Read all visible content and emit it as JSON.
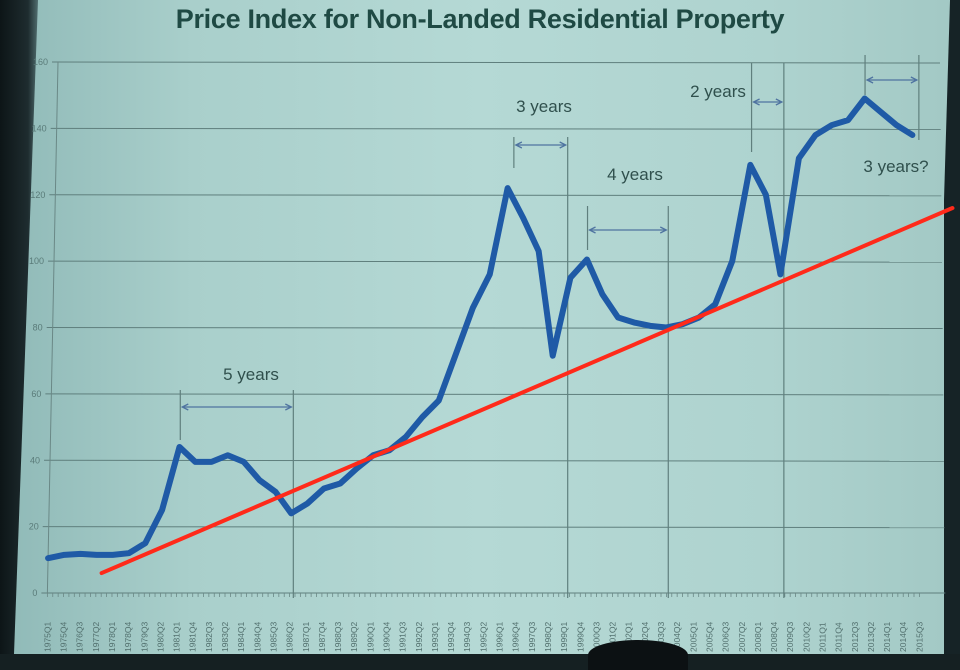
{
  "chart_data": {
    "type": "line",
    "title": "Price Index for Non-Landed Residential Property",
    "xlabel": "",
    "ylabel": "",
    "ylim": [
      0,
      160
    ],
    "yticks": [
      0,
      20,
      40,
      60,
      80,
      100,
      120,
      140,
      160
    ],
    "grid": true,
    "legend": null,
    "xtick_labels": [
      "1975Q1",
      "1975Q4",
      "1976Q3",
      "1977Q2",
      "1978Q1",
      "1978Q4",
      "1979Q3",
      "1980Q2",
      "1981Q1",
      "1981Q4",
      "1982Q3",
      "1983Q2",
      "1984Q1",
      "1984Q4",
      "1985Q3",
      "1986Q2",
      "1987Q1",
      "1987Q4",
      "1988Q3",
      "1989Q2",
      "1990Q1",
      "1990Q4",
      "1991Q3",
      "1992Q2",
      "1993Q1",
      "1993Q4",
      "1994Q3",
      "1995Q2",
      "1996Q1",
      "1996Q4",
      "1997Q3",
      "1998Q2",
      "1999Q1",
      "1999Q4",
      "2000Q3",
      "2001Q2",
      "2002Q1",
      "2002Q4",
      "2003Q3",
      "2004Q2",
      "2005Q1",
      "2005Q4",
      "2006Q3",
      "2007Q2",
      "2008Q1",
      "2008Q4",
      "2009Q3",
      "2010Q2",
      "2011Q1",
      "2011Q4",
      "2012Q3",
      "2013Q2",
      "2014Q1",
      "2014Q4",
      "2015Q3"
    ],
    "series": [
      {
        "name": "Price Index",
        "color": "#1f5aa6",
        "x": [
          "1975Q1",
          "1975Q4",
          "1976Q3",
          "1977Q2",
          "1978Q1",
          "1978Q4",
          "1979Q3",
          "1980Q2",
          "1981Q1",
          "1981Q4",
          "1982Q3",
          "1983Q2",
          "1984Q1",
          "1984Q4",
          "1985Q3",
          "1986Q2",
          "1987Q1",
          "1987Q4",
          "1988Q3",
          "1989Q2",
          "1990Q1",
          "1990Q4",
          "1991Q3",
          "1992Q2",
          "1993Q1",
          "1993Q4",
          "1994Q3",
          "1995Q2",
          "1996Q1",
          "1996Q4",
          "1997Q3",
          "1998Q2",
          "1999Q1",
          "1999Q4",
          "2000Q3",
          "2001Q2",
          "2002Q1",
          "2002Q4",
          "2003Q3",
          "2004Q2",
          "2005Q1",
          "2005Q4",
          "2006Q3",
          "2007Q2",
          "2008Q1",
          "2008Q4",
          "2009Q3",
          "2010Q2",
          "2011Q1",
          "2011Q4",
          "2012Q3",
          "2013Q2",
          "2014Q1",
          "2014Q4"
        ],
        "values": [
          10.5,
          11.5,
          11.8,
          11.5,
          11.5,
          12.0,
          15.0,
          25.0,
          44.0,
          39.5,
          39.5,
          41.5,
          39.5,
          34.0,
          30.5,
          24.0,
          27.0,
          31.5,
          33.0,
          37.5,
          41.5,
          43.0,
          47.0,
          53.0,
          58.0,
          72.0,
          86.0,
          96.0,
          122.0,
          113.0,
          103.0,
          71.5,
          95.0,
          100.5,
          90.0,
          83.0,
          81.5,
          80.5,
          80.0,
          81.0,
          83.0,
          87.0,
          100.0,
          129.0,
          120.0,
          96.0,
          131.0,
          138.0,
          141.0,
          142.5,
          149.0,
          145.0,
          141.0,
          138.0
        ]
      },
      {
        "name": "Trend line (annotation)",
        "color": "#ff2a1a",
        "x": [
          "1977Q3",
          "2015Q4"
        ],
        "values": [
          6.0,
          116.0
        ]
      }
    ],
    "annotations": [
      {
        "text": "5 years",
        "from": "1981Q1",
        "to": "1986Q2"
      },
      {
        "text": "3 years",
        "from": "1996Q2",
        "to": "1998Q4"
      },
      {
        "text": "4 years",
        "from": "1999Q4",
        "to": "2003Q3"
      },
      {
        "text": "2 years",
        "from": "2007Q2",
        "to": "2008Q4"
      },
      {
        "text": "3 years?",
        "from": "2012Q3",
        "to": "2015Q1"
      }
    ]
  }
}
